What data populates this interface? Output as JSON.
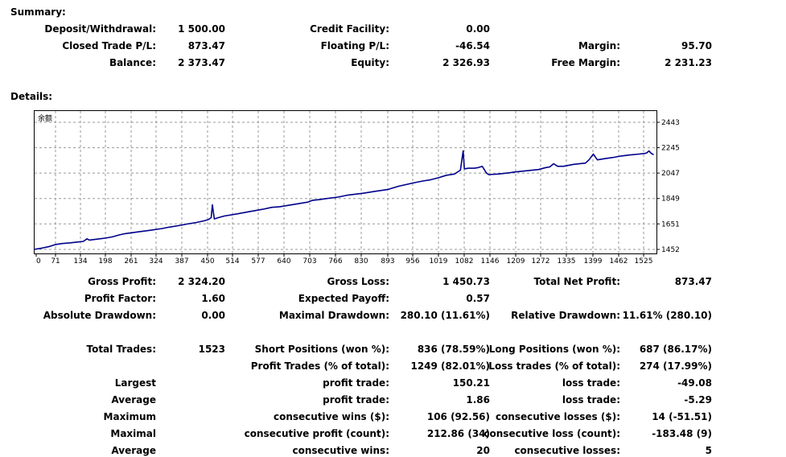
{
  "summary": {
    "heading": "Summary:",
    "deposit_label": "Deposit/Withdrawal:",
    "deposit_value": "1 500.00",
    "credit_label": "Credit Facility:",
    "credit_value": "0.00",
    "closed_label": "Closed Trade P/L:",
    "closed_value": "873.47",
    "floating_label": "Floating P/L:",
    "floating_value": "-46.54",
    "margin_label": "Margin:",
    "margin_value": "95.70",
    "balance_label": "Balance:",
    "balance_value": "2 373.47",
    "equity_label": "Equity:",
    "equity_value": "2 326.93",
    "free_margin_label": "Free Margin:",
    "free_margin_value": "2 231.23"
  },
  "details": {
    "heading": "Details:"
  },
  "chart_data": {
    "type": "line",
    "title": "余额",
    "xlabel": "",
    "ylabel": "",
    "x_ticks": [
      "0",
      "71",
      "134",
      "198",
      "261",
      "324",
      "387",
      "450",
      "514",
      "577",
      "640",
      "703",
      "766",
      "830",
      "893",
      "956",
      "1019",
      "1082",
      "1146",
      "1209",
      "1272",
      "1335",
      "1399",
      "1462",
      "1525"
    ],
    "y_ticks": [
      "2443",
      "2245",
      "2047",
      "1849",
      "1651",
      "1452"
    ],
    "xlim": [
      0,
      1565
    ],
    "ylim": [
      1452,
      2443
    ],
    "grid": true,
    "line_color": "#00008b",
    "series": [
      {
        "x": [
          0,
          20,
          40,
          55,
          71,
          90,
          110,
          125,
          134,
          140,
          160,
          180,
          198,
          215,
          230,
          261,
          290,
          324,
          340,
          370,
          387,
          410,
          430,
          440,
          447,
          450,
          455,
          465,
          480,
          514,
          540,
          577,
          600,
          620,
          640,
          660,
          690,
          703,
          720,
          735,
          766,
          790,
          830,
          860,
          893,
          920,
          956,
          980,
          1000,
          1019,
          1040,
          1060,
          1075,
          1080,
          1082,
          1085,
          1095,
          1110,
          1120,
          1125,
          1130,
          1140,
          1146,
          1170,
          1200,
          1209,
          1240,
          1272,
          1290,
          1300,
          1310,
          1320,
          1335,
          1360,
          1390,
          1399,
          1410,
          1420,
          1440,
          1462,
          1480,
          1500,
          1525,
          1540,
          1545,
          1550,
          1556,
          1562
        ],
        "y": [
          1452,
          1462,
          1475,
          1490,
          1498,
          1503,
          1510,
          1515,
          1535,
          1525,
          1532,
          1540,
          1550,
          1565,
          1575,
          1588,
          1600,
          1615,
          1625,
          1640,
          1650,
          1662,
          1675,
          1685,
          1700,
          1800,
          1690,
          1700,
          1712,
          1730,
          1745,
          1765,
          1780,
          1785,
          1795,
          1805,
          1820,
          1835,
          1840,
          1848,
          1860,
          1875,
          1890,
          1905,
          1920,
          1945,
          1970,
          1985,
          1995,
          2010,
          2030,
          2040,
          2070,
          2180,
          2220,
          2080,
          2085,
          2085,
          2090,
          2095,
          2100,
          2050,
          2035,
          2040,
          2050,
          2055,
          2065,
          2075,
          2090,
          2095,
          2120,
          2100,
          2100,
          2115,
          2125,
          2150,
          2195,
          2150,
          2160,
          2170,
          2180,
          2188,
          2195,
          2200,
          2205,
          2220,
          2200,
          2190
        ]
      }
    ]
  },
  "stats": {
    "gross_profit_label": "Gross Profit:",
    "gross_profit_value": "2 324.20",
    "gross_loss_label": "Gross Loss:",
    "gross_loss_value": "1 450.73",
    "total_net_label": "Total Net Profit:",
    "total_net_value": "873.47",
    "profit_factor_label": "Profit Factor:",
    "profit_factor_value": "1.60",
    "expected_payoff_label": "Expected Payoff:",
    "expected_payoff_value": "0.57",
    "abs_dd_label": "Absolute Drawdown:",
    "abs_dd_value": "0.00",
    "max_dd_label": "Maximal Drawdown:",
    "max_dd_value": "280.10 (11.61%)",
    "rel_dd_label": "Relative Drawdown:",
    "rel_dd_value": "11.61% (280.10)",
    "total_trades_label": "Total Trades:",
    "total_trades_value": "1523",
    "short_label": "Short Positions (won %):",
    "short_value": "836 (78.59%)",
    "long_label": "Long Positions (won %):",
    "long_value": "687 (86.17%)",
    "profit_trades_label": "Profit Trades (% of total):",
    "profit_trades_value": "1249 (82.01%)",
    "loss_trades_label": "Loss trades (% of total):",
    "loss_trades_value": "274 (17.99%)",
    "largest_label": "Largest",
    "largest_profit_label": "profit trade:",
    "largest_profit_value": "150.21",
    "largest_loss_label": "loss trade:",
    "largest_loss_value": "-49.08",
    "average_label": "Average",
    "average_profit_label": "profit trade:",
    "average_profit_value": "1.86",
    "average_loss_label": "loss trade:",
    "average_loss_value": "-5.29",
    "maximum_label": "Maximum",
    "max_cons_wins_label": "consecutive wins ($):",
    "max_cons_wins_value": "106 (92.56)",
    "max_cons_losses_label": "consecutive losses ($):",
    "max_cons_losses_value": "14 (-51.51)",
    "maximal_label": "Maximal",
    "maximal_profit_label": "consecutive profit (count):",
    "maximal_profit_value": "212.86 (34)",
    "maximal_loss_label": "consecutive loss (count):",
    "maximal_loss_value": "-183.48 (9)",
    "average2_label": "Average",
    "avg_cons_wins_label": "consecutive wins:",
    "avg_cons_wins_value": "20",
    "avg_cons_losses_label": "consecutive losses:",
    "avg_cons_losses_value": "5"
  }
}
